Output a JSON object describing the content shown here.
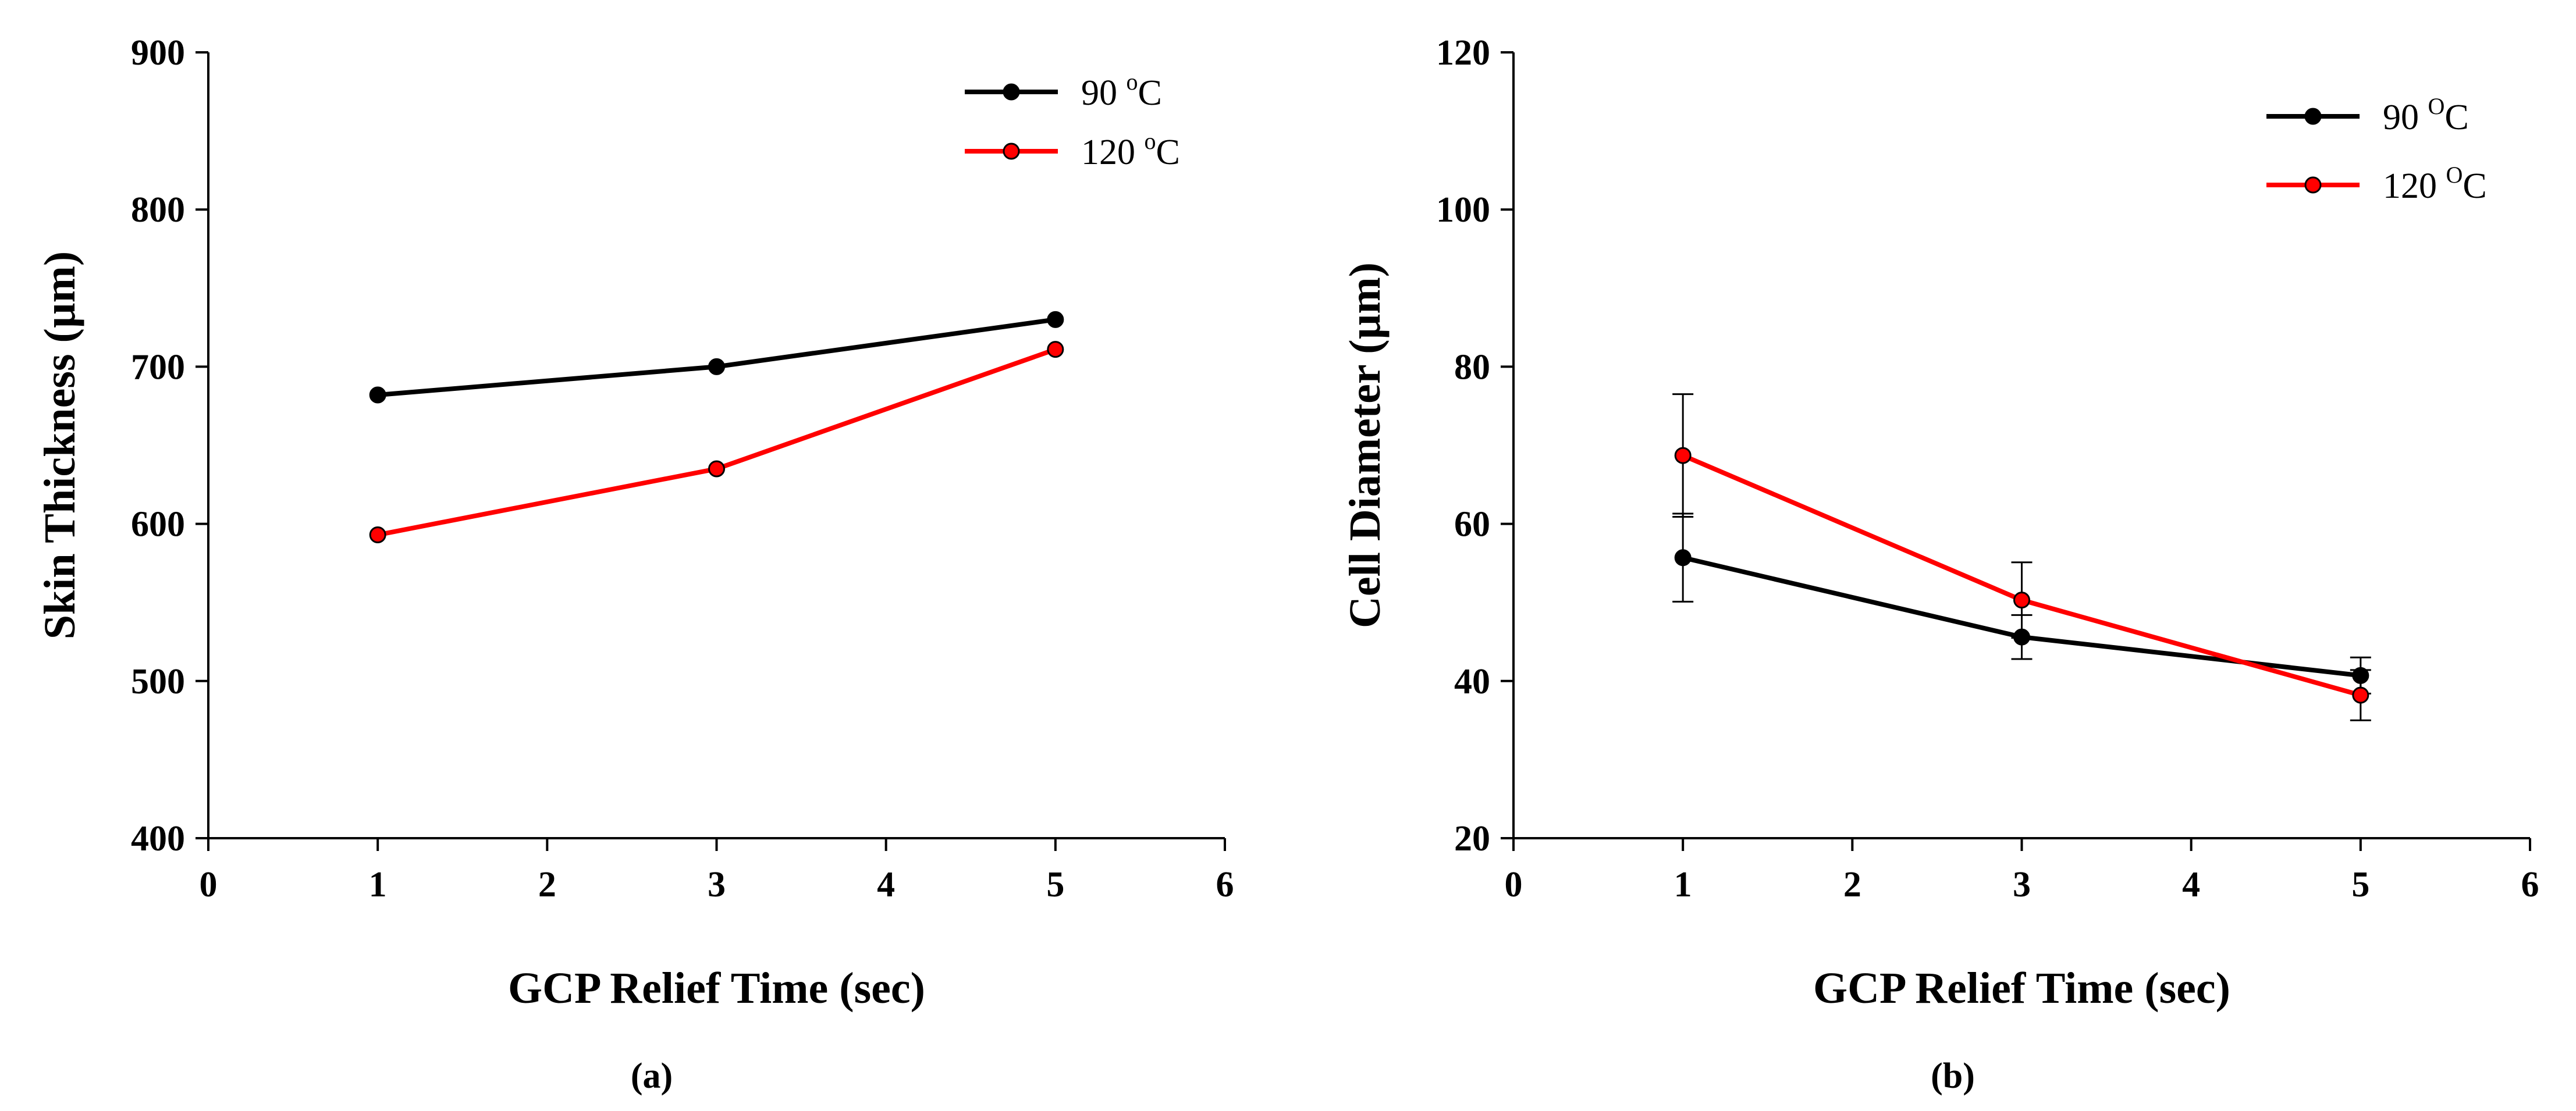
{
  "chart_data": [
    {
      "type": "line",
      "panel_label": "(a)",
      "xlabel": "GCP Relief Time (sec)",
      "ylabel": "Skin Thickness (µm)",
      "xlim": [
        0,
        6
      ],
      "ylim": [
        400,
        900
      ],
      "x_ticks": [
        "0",
        "1",
        "2",
        "3",
        "4",
        "5",
        "6"
      ],
      "y_ticks": [
        "400",
        "500",
        "600",
        "700",
        "800",
        "900"
      ],
      "grid": false,
      "legend_position": "top-right",
      "x": [
        1,
        3,
        5
      ],
      "series": [
        {
          "name": "90 °C",
          "legend_base": "90 ",
          "legend_sup": "o",
          "legend_unit": "C",
          "color": "#000000",
          "values": [
            682,
            700,
            730
          ]
        },
        {
          "name": "120 °C",
          "legend_base": "120 ",
          "legend_sup": "o",
          "legend_unit": "C",
          "color": "#ff0000",
          "values": [
            593,
            635,
            711
          ]
        }
      ]
    },
    {
      "type": "line",
      "panel_label": "(b)",
      "xlabel": "GCP Relief Time (sec)",
      "ylabel": "Cell Diameter (µm)",
      "xlim": [
        0,
        6
      ],
      "ylim": [
        20,
        120
      ],
      "x_ticks": [
        "0",
        "1",
        "2",
        "3",
        "4",
        "5",
        "6"
      ],
      "y_ticks": [
        "20",
        "40",
        "60",
        "80",
        "100",
        "120"
      ],
      "grid": false,
      "legend_position": "top-right",
      "x": [
        1,
        3,
        5
      ],
      "series": [
        {
          "name": "90 °C",
          "legend_base": "90 ",
          "legend_sup": "O",
          "legend_unit": "C",
          "color": "#000000",
          "values": [
            55.7,
            45.6,
            40.7
          ],
          "error": [
            5.6,
            2.8,
            2.3
          ]
        },
        {
          "name": "120 °C",
          "legend_base": "120 ",
          "legend_sup": "O",
          "legend_unit": "C",
          "color": "#ff0000",
          "values": [
            68.7,
            50.3,
            38.2
          ],
          "error": [
            7.8,
            4.8,
            3.2
          ]
        }
      ]
    }
  ]
}
